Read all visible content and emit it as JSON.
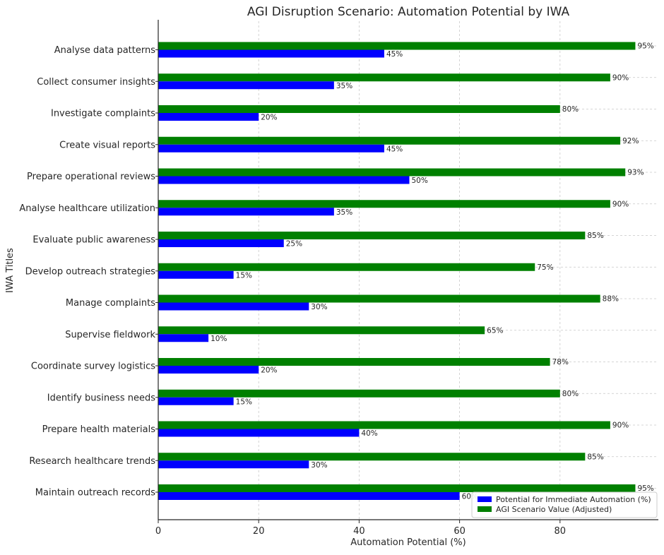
{
  "chart_data": {
    "type": "bar",
    "orientation": "horizontal",
    "title": "AGI Disruption Scenario: Automation Potential by IWA",
    "xlabel": "Automation Potential (%)",
    "ylabel": "IWA Titles",
    "xlim": [
      0,
      100
    ],
    "xticks": [
      0,
      20,
      40,
      60,
      80
    ],
    "grid": true,
    "legend_position": "bottom-right",
    "categories": [
      "Analyse data patterns",
      "Collect consumer insights",
      "Investigate complaints",
      "Create visual reports",
      "Prepare operational reviews",
      "Analyse healthcare utilization",
      "Evaluate public awareness",
      "Develop outreach strategies",
      "Manage complaints",
      "Supervise fieldwork",
      "Coordinate survey logistics",
      "Identify business needs",
      "Prepare health materials",
      "Research healthcare trends",
      "Maintain outreach records"
    ],
    "series": [
      {
        "name": "Potential for Immediate Automation (%)",
        "color": "#0000ff",
        "values": [
          45,
          35,
          20,
          45,
          50,
          35,
          25,
          15,
          30,
          10,
          20,
          15,
          40,
          30,
          60
        ],
        "labels": [
          "45%",
          "35%",
          "20%",
          "45%",
          "50%",
          "35%",
          "25%",
          "15%",
          "30%",
          "10%",
          "20%",
          "15%",
          "40%",
          "30%",
          "60%"
        ]
      },
      {
        "name": "AGI Scenario Value (Adjusted)",
        "color": "#008000",
        "values": [
          95,
          90,
          80,
          92,
          93,
          90,
          85,
          75,
          88,
          65,
          78,
          80,
          90,
          85,
          95
        ],
        "labels": [
          "95%",
          "90%",
          "80%",
          "92%",
          "93%",
          "90%",
          "85%",
          "75%",
          "88%",
          "65%",
          "78%",
          "80%",
          "90%",
          "85%",
          "95%"
        ]
      }
    ]
  }
}
